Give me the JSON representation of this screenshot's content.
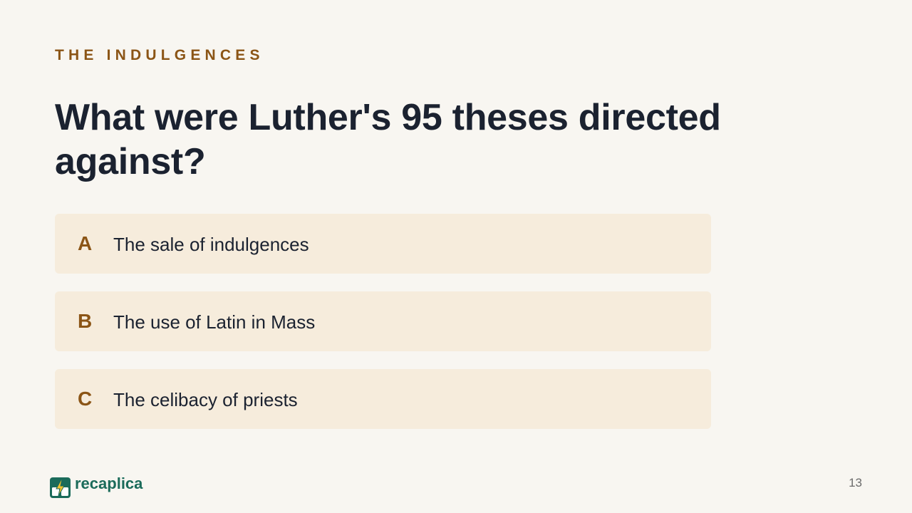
{
  "slide": {
    "eyebrow": "THE INDULGENCES",
    "question": "What were Luther's 95 theses directed against?",
    "options": [
      {
        "letter": "A",
        "text": "The sale of indulgences"
      },
      {
        "letter": "B",
        "text": "The use of Latin in Mass"
      },
      {
        "letter": "C",
        "text": "The celibacy of priests"
      }
    ],
    "page_number": "13"
  },
  "brand": {
    "name": "recaplica",
    "logo_icon": "lightning-card-icon"
  },
  "colors": {
    "background": "#f8f6f1",
    "accent": "#8b5516",
    "option_background": "#f6ecdc",
    "heading": "#1b2230",
    "brand": "#1b6b5a"
  }
}
